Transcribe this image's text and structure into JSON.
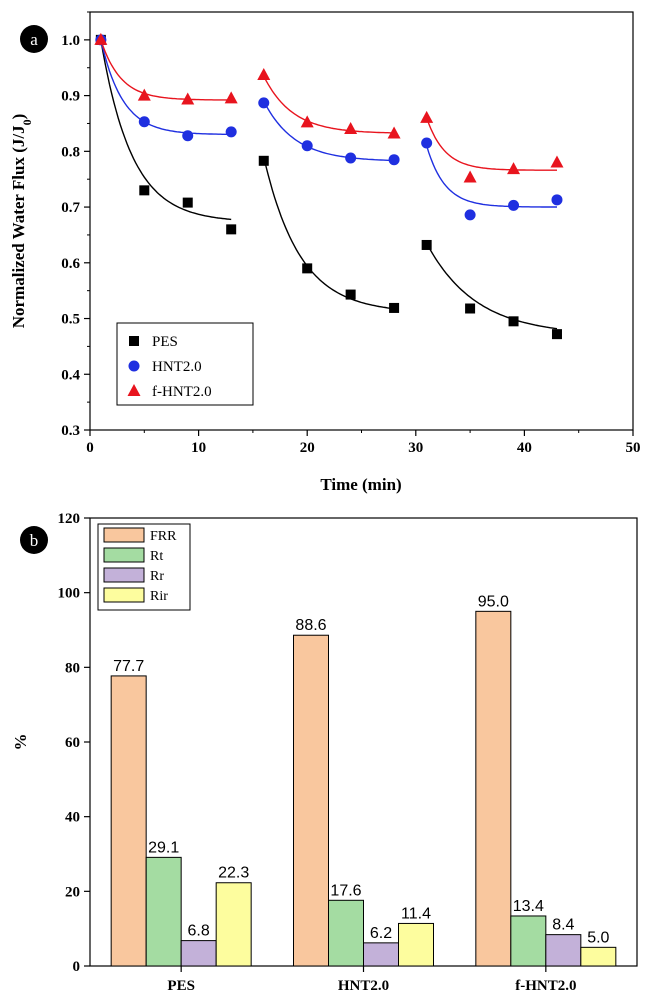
{
  "panels": {
    "a": {
      "badge": "a",
      "chart_data": {
        "type": "scatter",
        "xlabel": "Time (min)",
        "ylabel": "Normalized Water Flux (J/J0)",
        "ylabel_main": "Normalized Water Flux (J/J",
        "ylabel_sub": "0",
        "ylabel_end": ")",
        "xlim": [
          0,
          50
        ],
        "ylim": [
          0.3,
          1.05
        ],
        "xticks": [
          "0",
          "10",
          "20",
          "30",
          "40",
          "50"
        ],
        "yticks": [
          "0.3",
          "0.4",
          "0.5",
          "0.6",
          "0.7",
          "0.8",
          "0.9",
          "1.0"
        ],
        "legend_position": "bottom-left",
        "series": [
          {
            "name": "PES",
            "color": "#000000",
            "marker": "square",
            "x": [
              1,
              5,
              9,
              13,
              16,
              20,
              24,
              28,
              31,
              35,
              39,
              43
            ],
            "y": [
              1.0,
              0.73,
              0.708,
              0.66,
              0.783,
              0.59,
              0.543,
              0.519,
              0.632,
              0.518,
              0.495,
              0.472
            ],
            "fits": [
              {
                "x0": 1,
                "x1": 13,
                "yStart": 1.0,
                "yEnd": 0.673,
                "k": 0.35
              },
              {
                "x0": 16,
                "x1": 28,
                "yStart": 0.79,
                "yEnd": 0.51,
                "k": 0.3
              },
              {
                "x0": 31,
                "x1": 43,
                "yStart": 0.635,
                "yEnd": 0.47,
                "k": 0.22
              }
            ]
          },
          {
            "name": "HNT2.0",
            "color": "#1f2fe0",
            "marker": "circle",
            "x": [
              1,
              5,
              9,
              13,
              16,
              20,
              24,
              28,
              31,
              35,
              39,
              43
            ],
            "y": [
              1.0,
              0.853,
              0.828,
              0.835,
              0.887,
              0.81,
              0.788,
              0.785,
              0.815,
              0.686,
              0.703,
              0.713
            ],
            "fits": [
              {
                "x0": 1,
                "x1": 13,
                "yStart": 1.0,
                "yEnd": 0.83,
                "k": 0.5
              },
              {
                "x0": 16,
                "x1": 28,
                "yStart": 0.89,
                "yEnd": 0.782,
                "k": 0.35
              },
              {
                "x0": 31,
                "x1": 43,
                "yStart": 0.81,
                "yEnd": 0.7,
                "k": 0.6
              }
            ]
          },
          {
            "name": "f-HNT2.0",
            "color": "#e8141e",
            "marker": "triangle",
            "x": [
              1,
              5,
              9,
              13,
              16,
              20,
              24,
              28,
              31,
              35,
              39,
              43
            ],
            "y": [
              1.0,
              0.9,
              0.893,
              0.895,
              0.937,
              0.852,
              0.84,
              0.832,
              0.86,
              0.753,
              0.768,
              0.78
            ],
            "fits": [
              {
                "x0": 1,
                "x1": 13,
                "yStart": 1.0,
                "yEnd": 0.892,
                "k": 0.55
              },
              {
                "x0": 16,
                "x1": 28,
                "yStart": 0.935,
                "yEnd": 0.832,
                "k": 0.38
              },
              {
                "x0": 31,
                "x1": 43,
                "yStart": 0.86,
                "yEnd": 0.766,
                "k": 0.6
              }
            ]
          }
        ]
      }
    },
    "b": {
      "badge": "b",
      "chart_data": {
        "type": "bar",
        "ylabel": "%",
        "xlabel": "",
        "ylim": [
          0,
          120
        ],
        "yticks": [
          "0",
          "20",
          "40",
          "60",
          "80",
          "100",
          "120"
        ],
        "categories": [
          "PES",
          "HNT2.0",
          "f-HNT2.0"
        ],
        "legend_position": "top-left",
        "series": [
          {
            "name": "FRR",
            "color": "#f9c79e",
            "values": [
              77.7,
              88.6,
              95.0
            ],
            "labels": [
              "77.7",
              "88.6",
              "95.0"
            ]
          },
          {
            "name": "Rt",
            "color": "#a4dca2",
            "values": [
              29.1,
              17.6,
              13.4
            ],
            "labels": [
              "29.1",
              "17.6",
              "13.4"
            ]
          },
          {
            "name": "Rr",
            "color": "#c3b1d9",
            "values": [
              6.8,
              6.2,
              8.4
            ],
            "labels": [
              "6.8",
              "6.2",
              "8.4"
            ]
          },
          {
            "name": "Rir",
            "color": "#fdfd9e",
            "values": [
              22.3,
              11.4,
              5.0
            ],
            "labels": [
              "22.3",
              "11.4",
              "5.0"
            ]
          }
        ]
      }
    }
  }
}
